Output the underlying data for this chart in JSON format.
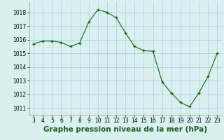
{
  "x": [
    3,
    4,
    5,
    6,
    7,
    8,
    9,
    10,
    11,
    12,
    13,
    14,
    15,
    16,
    17,
    18,
    19,
    20,
    21,
    22,
    23
  ],
  "y": [
    1015.7,
    1015.9,
    1015.9,
    1015.8,
    1015.5,
    1015.75,
    1017.3,
    1018.2,
    1018.0,
    1017.6,
    1016.5,
    1015.5,
    1015.2,
    1015.15,
    1012.9,
    1012.1,
    1011.4,
    1011.1,
    1012.1,
    1013.3,
    1015.0
  ],
  "xlabel": "Graphe pression niveau de la mer (hPa)",
  "xlim": [
    2.5,
    23.5
  ],
  "ylim": [
    1010.5,
    1018.8
  ],
  "yticks": [
    1011,
    1012,
    1013,
    1014,
    1015,
    1016,
    1017,
    1018
  ],
  "xticks": [
    3,
    4,
    5,
    6,
    7,
    8,
    9,
    10,
    11,
    12,
    13,
    14,
    15,
    16,
    17,
    18,
    19,
    20,
    21,
    22,
    23
  ],
  "line_color": "#1a5c1a",
  "marker": "+",
  "bg_color": "#d9f0f0",
  "grid_color": "#aacfcf",
  "xlabel_fontsize": 7.5,
  "tick_fontsize": 5.5
}
